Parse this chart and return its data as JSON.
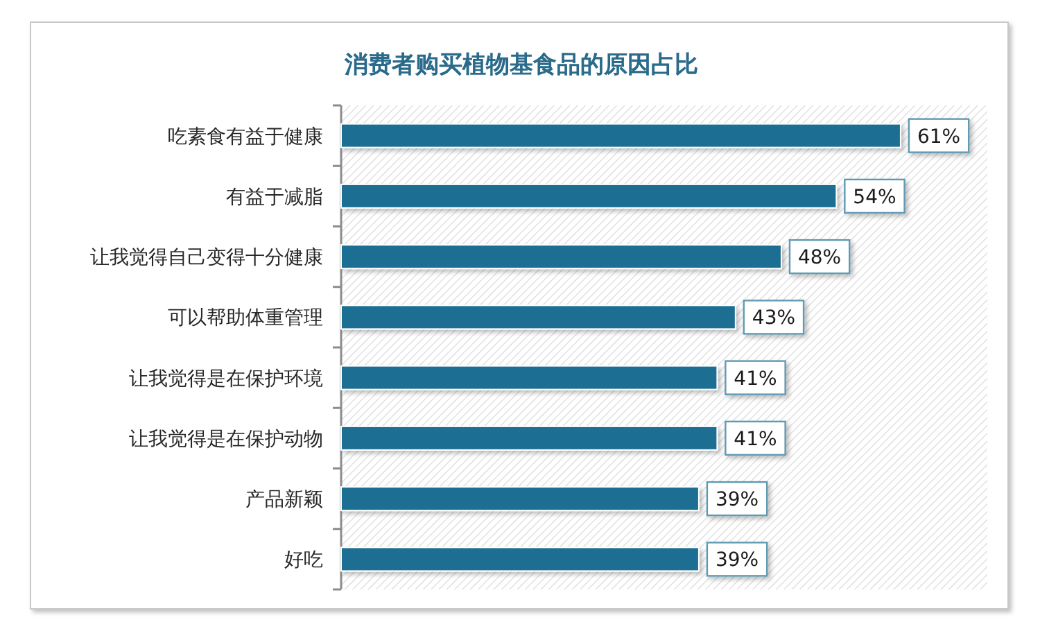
{
  "chart_data": {
    "type": "bar",
    "orientation": "horizontal",
    "title": "消费者购买植物基食品的原因占比",
    "categories": [
      "吃素食有益于健康",
      "有益于减脂",
      "让我觉得自己变得十分健康",
      "可以帮助体重管理",
      "让我觉得是在保护环境",
      "让我觉得是在保护动物",
      "产品新颖",
      "好吃"
    ],
    "values": [
      61,
      54,
      48,
      43,
      41,
      41,
      39,
      39
    ],
    "color": "#1f6e92",
    "value_labels": [
      "61%",
      "54%",
      "48%",
      "43%",
      "41%",
      "41%",
      "39%",
      "39%"
    ]
  }
}
